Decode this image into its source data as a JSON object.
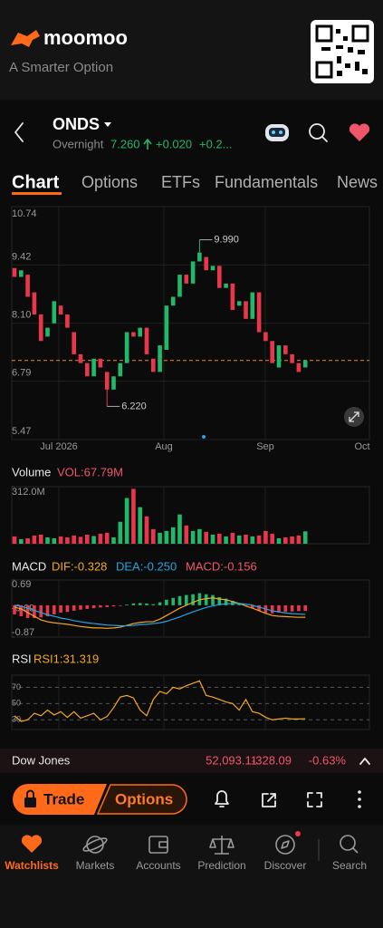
{
  "header": {
    "brand": "moomoo",
    "tagline": "A Smarter Option"
  },
  "stock": {
    "symbol": "ONDS",
    "session": "Overnight",
    "price": "7.260",
    "change": "+0.020",
    "change_pct": "+0.2..."
  },
  "tabs": [
    "Chart",
    "Options",
    "ETFs",
    "Fundamentals",
    "News"
  ],
  "chart_data": [
    {
      "type": "candlestick",
      "up_color": "#22b86a",
      "down_color": "#e8374b",
      "grid": true,
      "open": [
        9.35,
        9.15,
        9.2,
        8.8,
        8.3,
        7.8,
        8.1,
        8.5,
        8.3,
        7.9,
        7.4,
        7.2,
        6.9,
        7.3,
        7.0,
        6.6,
        6.9,
        7.2,
        7.9,
        7.8,
        8.0,
        7.3,
        7.0,
        7.5,
        8.5,
        8.7,
        9.2,
        9.0,
        9.5,
        9.6,
        9.3,
        9.4,
        8.9,
        9.0,
        8.5,
        8.6,
        8.2,
        8.8,
        7.9,
        7.7,
        7.1,
        7.6,
        7.4,
        7.2,
        7.1
      ],
      "close": [
        9.15,
        9.3,
        8.7,
        8.3,
        7.7,
        8.0,
        8.6,
        8.3,
        8.0,
        7.4,
        7.2,
        6.9,
        7.3,
        7.1,
        6.6,
        6.9,
        7.2,
        7.9,
        7.8,
        8.0,
        7.4,
        7.0,
        7.6,
        8.5,
        8.7,
        9.2,
        9.0,
        9.5,
        9.7,
        9.3,
        9.4,
        8.9,
        9.0,
        8.4,
        8.6,
        8.2,
        8.8,
        7.9,
        7.7,
        7.2,
        7.6,
        7.4,
        7.2,
        7.0,
        7.26
      ],
      "ylim": [
        5.47,
        10.74
      ],
      "yticks": [
        10.74,
        9.42,
        {
          "value": 8.1,
          "label": "8.10"
        },
        6.79,
        5.47
      ],
      "x_labels": [
        "Jul 2026",
        "Aug",
        "Sep",
        "Oct"
      ],
      "annotations": [
        {
          "label": "9.990",
          "value": 9.99
        },
        {
          "label": "6.220",
          "value": 6.22
        }
      ],
      "reference_line": 7.26,
      "reference_color": "#f08a24"
    },
    {
      "type": "bar",
      "title": "Volume",
      "value_label": "VOL:67.79M",
      "values": [
        40000000,
        25000000,
        30000000,
        45000000,
        50000000,
        35000000,
        30000000,
        40000000,
        35000000,
        45000000,
        38000000,
        50000000,
        42000000,
        55000000,
        60000000,
        35000000,
        120000000,
        250000000,
        300000000,
        200000000,
        150000000,
        80000000,
        60000000,
        70000000,
        90000000,
        160000000,
        100000000,
        70000000,
        80000000,
        65000000,
        50000000,
        55000000,
        40000000,
        60000000,
        45000000,
        50000000,
        40000000,
        45000000,
        70000000,
        55000000,
        30000000,
        35000000,
        40000000,
        45000000,
        67790000
      ],
      "ylim": [
        0,
        312000000
      ],
      "yticks": [
        {
          "value": 312000000,
          "label": "312.0M"
        }
      ]
    },
    {
      "type": "macd",
      "title": "MACD",
      "legend": [
        {
          "label": "DIF:-0.328",
          "color": "#f5a623"
        },
        {
          "label": "DEA:-0.250",
          "color": "#29a3e0"
        },
        {
          "label": "MACD:-0.156",
          "color": "#f0566b"
        }
      ],
      "dif": [
        -0.05,
        -0.1,
        -0.2,
        -0.3,
        -0.4,
        -0.45,
        -0.48,
        -0.5,
        -0.52,
        -0.55,
        -0.58,
        -0.6,
        -0.62,
        -0.62,
        -0.63,
        -0.62,
        -0.6,
        -0.55,
        -0.5,
        -0.47,
        -0.45,
        -0.45,
        -0.38,
        -0.28,
        -0.18,
        -0.08,
        0.0,
        0.08,
        0.15,
        0.18,
        0.2,
        0.17,
        0.15,
        0.1,
        0.05,
        -0.02,
        -0.08,
        -0.15,
        -0.22,
        -0.28,
        -0.3,
        -0.31,
        -0.32,
        -0.33,
        -0.328
      ],
      "dea": [
        0.0,
        -0.03,
        -0.08,
        -0.14,
        -0.2,
        -0.26,
        -0.3,
        -0.35,
        -0.38,
        -0.42,
        -0.45,
        -0.48,
        -0.5,
        -0.52,
        -0.54,
        -0.55,
        -0.56,
        -0.56,
        -0.55,
        -0.53,
        -0.52,
        -0.5,
        -0.48,
        -0.44,
        -0.38,
        -0.32,
        -0.25,
        -0.18,
        -0.12,
        -0.06,
        -0.02,
        0.02,
        0.04,
        0.05,
        0.05,
        0.03,
        0.0,
        -0.05,
        -0.1,
        -0.15,
        -0.18,
        -0.21,
        -0.23,
        -0.24,
        -0.25
      ],
      "histogram": [
        -0.25,
        -0.3,
        -0.35,
        -0.35,
        -0.33,
        -0.3,
        -0.25,
        -0.2,
        -0.18,
        -0.15,
        -0.12,
        -0.1,
        -0.08,
        -0.06,
        -0.05,
        -0.03,
        -0.02,
        0.02,
        0.05,
        0.06,
        0.05,
        0.03,
        0.08,
        0.15,
        0.2,
        0.25,
        0.28,
        0.3,
        0.33,
        0.3,
        0.28,
        0.22,
        0.18,
        0.12,
        0.05,
        -0.02,
        -0.08,
        -0.15,
        -0.2,
        -0.22,
        -0.2,
        -0.18,
        -0.17,
        -0.16,
        -0.156
      ],
      "up_color": "#22b86a",
      "down_color": "#e8374b",
      "ylim": [
        -0.87,
        0.69
      ],
      "yticks": [
        0.69,
        -0.09,
        -0.87
      ]
    },
    {
      "type": "line",
      "title": "RSI",
      "series": [
        {
          "name": "RSI1:31.319",
          "color": "#f5a623",
          "values": [
            35,
            28,
            30,
            38,
            35,
            42,
            36,
            40,
            33,
            40,
            32,
            35,
            38,
            30,
            34,
            45,
            58,
            60,
            57,
            42,
            35,
            55,
            65,
            62,
            70,
            68,
            72,
            75,
            78,
            60,
            58,
            55,
            52,
            50,
            42,
            55,
            40,
            38,
            33,
            30,
            31,
            32,
            31,
            31,
            31.319
          ]
        }
      ],
      "ylim": [
        18,
        85
      ],
      "yticks": [
        70,
        50,
        30
      ]
    }
  ],
  "ticker": {
    "name": "Dow Jones",
    "value": "52,093.11",
    "change": "-328.09",
    "change_pct": "-0.63%"
  },
  "actions": {
    "trade": "Trade",
    "options": "Options"
  },
  "nav": [
    "Watchlists",
    "Markets",
    "Accounts",
    "Prediction",
    "Discover",
    "Search"
  ]
}
